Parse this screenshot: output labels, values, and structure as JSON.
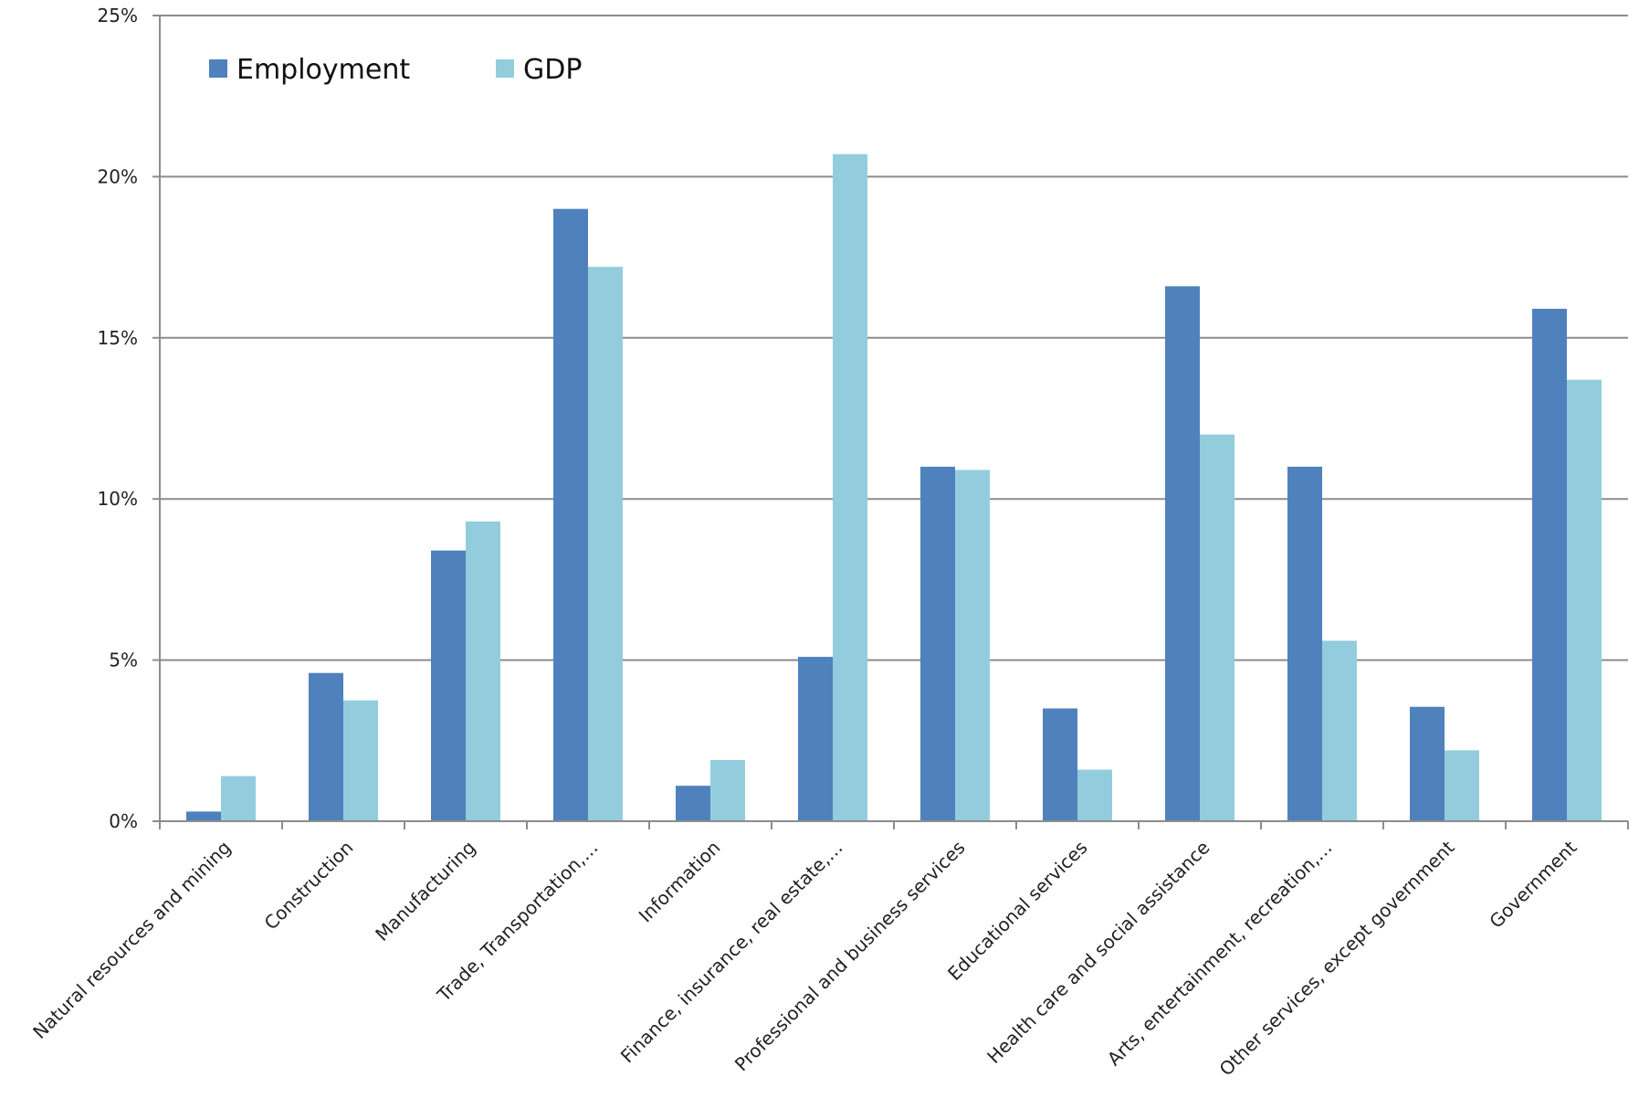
{
  "chart_data": {
    "type": "bar",
    "categories": [
      "Natural resources and mining",
      "Construction",
      "Manufacturing",
      "Trade, Transportation,…",
      "Information",
      "Finance, insurance, real estate,…",
      "Professional and business services",
      "Educational services",
      "Health care and social assistance",
      "Arts, entertainment, recreation,…",
      "Other services, except government",
      "Government"
    ],
    "series": [
      {
        "name": "Employment",
        "color": "#4F81BD",
        "values": [
          0.3,
          4.6,
          8.4,
          19.0,
          1.1,
          5.1,
          11.0,
          3.5,
          16.6,
          11.0,
          3.55,
          15.9
        ]
      },
      {
        "name": "GDP",
        "color": "#93CDDD",
        "values": [
          1.4,
          3.75,
          9.3,
          17.2,
          1.9,
          20.7,
          10.9,
          1.6,
          12.0,
          5.6,
          2.2,
          13.7
        ]
      }
    ],
    "yticks": [
      "0%",
      "5%",
      "10%",
      "15%",
      "20%",
      "25%"
    ],
    "ylim": [
      0,
      25
    ],
    "grid": true,
    "legend_position": "top-left"
  }
}
